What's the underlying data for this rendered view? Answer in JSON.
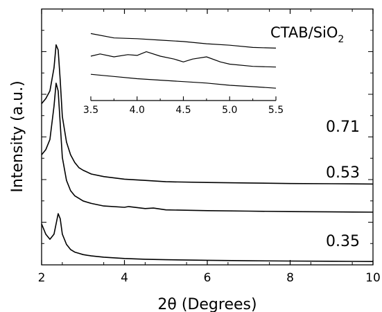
{
  "chart_data": [
    {
      "type": "line",
      "xlabel": "2θ (Degrees)",
      "ylabel": "Intensity (a.u.)",
      "xlim": [
        2,
        10
      ],
      "x_ticks": [
        2,
        4,
        6,
        8,
        10
      ],
      "x_tick_labels": [
        "2",
        "4",
        "6",
        "8",
        "10"
      ],
      "y_ticks_labeled": false,
      "grid": false,
      "legend_title": {
        "main": "CTAB/SiO",
        "subscript": "2"
      },
      "series": [
        {
          "name": "0.71",
          "color": "#000000",
          "x": [
            2.0,
            2.1,
            2.2,
            2.3,
            2.35,
            2.4,
            2.45,
            2.5,
            2.6,
            2.7,
            2.8,
            2.9,
            3.0,
            3.2,
            3.5,
            4.0,
            4.5,
            5.0,
            6.0,
            7.0,
            8.0,
            9.0,
            10.0
          ],
          "y": [
            0.63,
            0.65,
            0.68,
            0.77,
            0.86,
            0.84,
            0.72,
            0.58,
            0.48,
            0.43,
            0.4,
            0.38,
            0.37,
            0.355,
            0.345,
            0.335,
            0.33,
            0.325,
            0.322,
            0.32,
            0.318,
            0.317,
            0.316
          ]
        },
        {
          "name": "0.53",
          "color": "#000000",
          "x": [
            2.0,
            2.1,
            2.2,
            2.3,
            2.35,
            2.4,
            2.45,
            2.5,
            2.6,
            2.7,
            2.8,
            2.9,
            3.0,
            3.2,
            3.5,
            4.0,
            4.1,
            4.5,
            4.7,
            5.0,
            6.0,
            7.0,
            8.0,
            9.0,
            10.0
          ],
          "y": [
            0.43,
            0.45,
            0.49,
            0.62,
            0.71,
            0.68,
            0.55,
            0.42,
            0.33,
            0.29,
            0.27,
            0.26,
            0.25,
            0.24,
            0.23,
            0.225,
            0.228,
            0.22,
            0.222,
            0.215,
            0.212,
            0.21,
            0.208,
            0.207,
            0.206
          ]
        },
        {
          "name": "0.35",
          "color": "#000000",
          "x": [
            2.0,
            2.1,
            2.2,
            2.3,
            2.35,
            2.4,
            2.45,
            2.5,
            2.6,
            2.7,
            2.8,
            2.9,
            3.0,
            3.2,
            3.5,
            4.0,
            4.5,
            5.0,
            6.0,
            7.0,
            8.0,
            9.0,
            10.0
          ],
          "y": [
            0.16,
            0.12,
            0.1,
            0.12,
            0.16,
            0.2,
            0.18,
            0.12,
            0.08,
            0.06,
            0.05,
            0.045,
            0.04,
            0.035,
            0.03,
            0.025,
            0.022,
            0.02,
            0.018,
            0.016,
            0.015,
            0.014,
            0.013
          ]
        }
      ]
    },
    {
      "type": "line",
      "role": "inset",
      "xlim": [
        3.5,
        5.5
      ],
      "x_ticks": [
        3.5,
        4.0,
        4.5,
        5.0,
        5.5
      ],
      "x_tick_labels": [
        "3.5",
        "4.0",
        "4.5",
        "5.0",
        "5.5"
      ],
      "ylim": [
        0,
        1
      ],
      "series": [
        {
          "name": "0.71",
          "x": [
            3.5,
            3.75,
            4.0,
            4.25,
            4.5,
            4.75,
            5.0,
            5.25,
            5.5
          ],
          "y": [
            0.92,
            0.86,
            0.85,
            0.83,
            0.81,
            0.78,
            0.76,
            0.73,
            0.72
          ]
        },
        {
          "name": "0.53",
          "x": [
            3.5,
            3.6,
            3.75,
            3.9,
            4.0,
            4.1,
            4.25,
            4.4,
            4.5,
            4.6,
            4.75,
            4.9,
            5.0,
            5.25,
            5.5
          ],
          "y": [
            0.61,
            0.64,
            0.6,
            0.63,
            0.62,
            0.67,
            0.61,
            0.57,
            0.53,
            0.57,
            0.6,
            0.53,
            0.5,
            0.47,
            0.46
          ]
        },
        {
          "name": "0.35",
          "x": [
            3.5,
            3.75,
            4.0,
            4.25,
            4.5,
            4.75,
            5.0,
            5.25,
            5.5
          ],
          "y": [
            0.36,
            0.33,
            0.3,
            0.28,
            0.26,
            0.24,
            0.21,
            0.19,
            0.17
          ]
        }
      ]
    }
  ]
}
